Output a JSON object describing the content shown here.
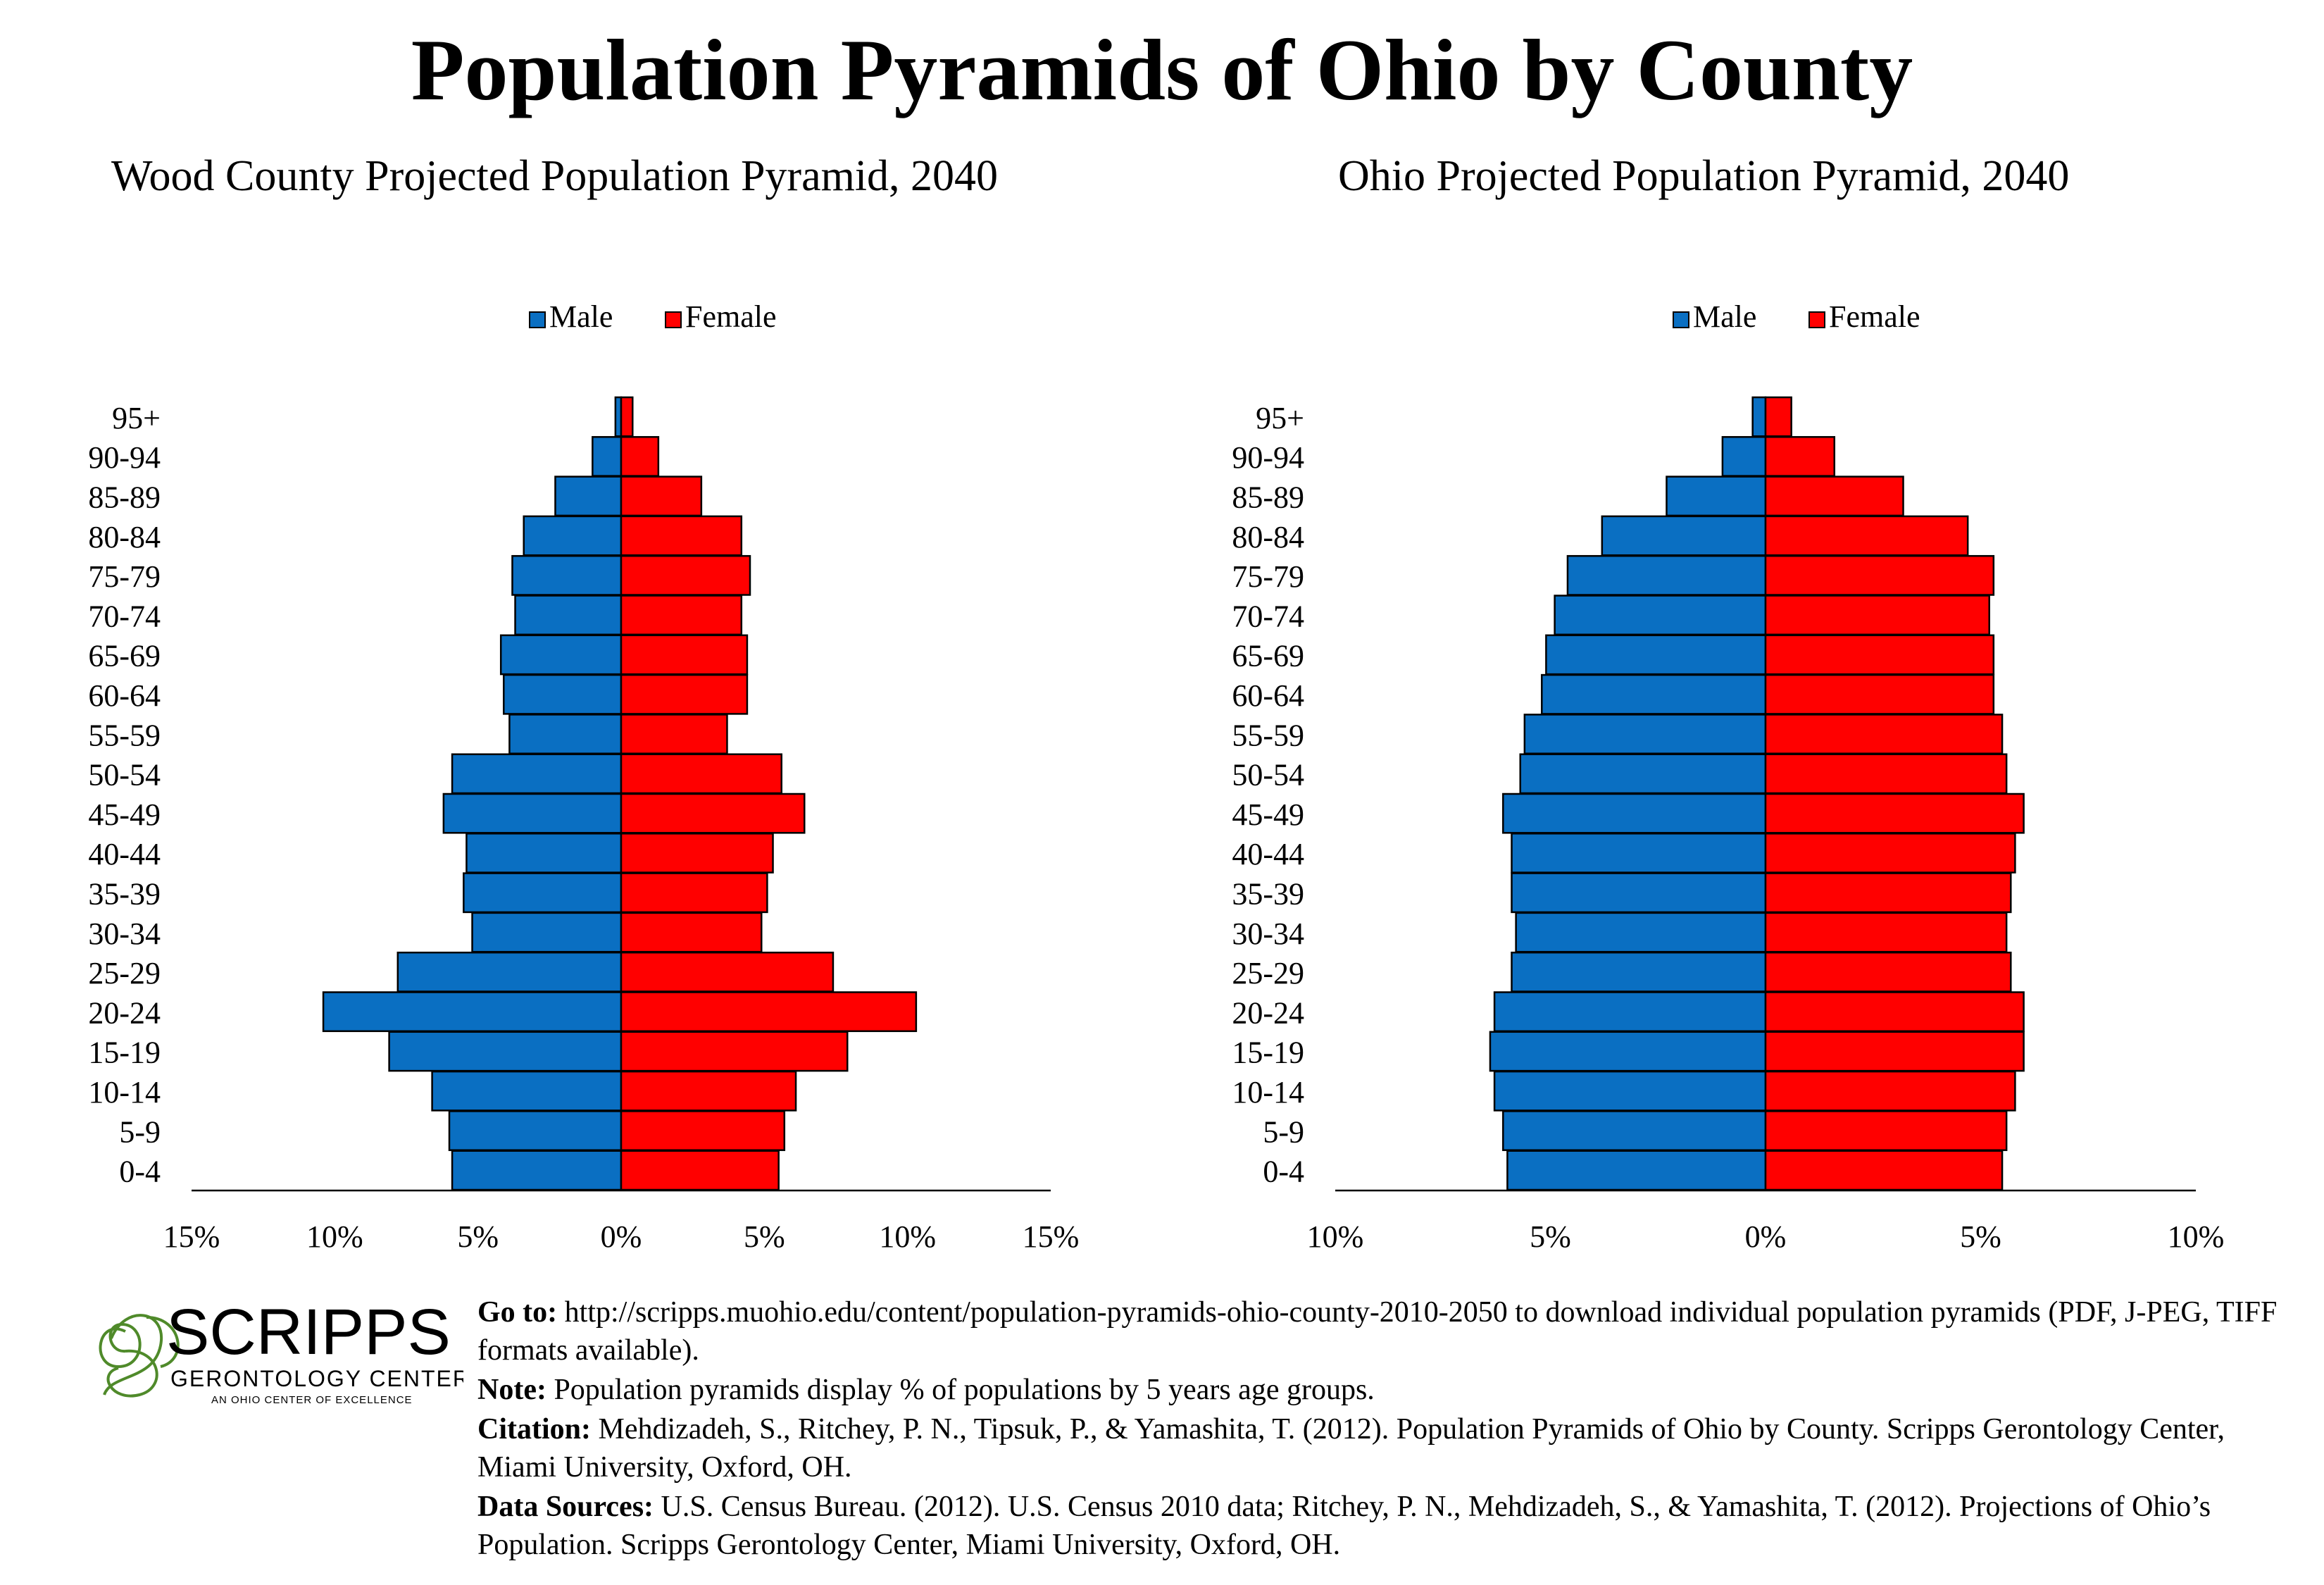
{
  "title": "Population Pyramids of Ohio by County",
  "colors": {
    "male": "#0a6fc2",
    "female": "#ff0000",
    "logo_red": "#b5282e",
    "logo_green": "#4f8a2a"
  },
  "chart_data": [
    {
      "type": "bar",
      "title": "Wood County Projected Population Pyramid, 2040",
      "legend": {
        "position": "top-center",
        "entries": [
          "Male",
          "Female"
        ]
      },
      "categories": [
        "95+",
        "90-94",
        "85-89",
        "80-84",
        "75-79",
        "70-74",
        "65-69",
        "60-64",
        "55-59",
        "50-54",
        "45-49",
        "40-44",
        "35-39",
        "30-34",
        "25-29",
        "20-24",
        "15-19",
        "10-14",
        "5-9",
        "0-4"
      ],
      "series": [
        {
          "name": "Male",
          "values": [
            0.2,
            1.0,
            2.3,
            3.4,
            3.8,
            3.7,
            4.2,
            4.1,
            3.9,
            5.9,
            6.2,
            5.4,
            5.5,
            5.2,
            7.8,
            10.4,
            8.1,
            6.6,
            6.0,
            5.9
          ]
        },
        {
          "name": "Female",
          "values": [
            0.4,
            1.3,
            2.8,
            4.2,
            4.5,
            4.2,
            4.4,
            4.4,
            3.7,
            5.6,
            6.4,
            5.3,
            5.1,
            4.9,
            7.4,
            10.3,
            7.9,
            6.1,
            5.7,
            5.5
          ]
        }
      ],
      "xlim": [
        -15,
        15
      ],
      "xticks": [
        "15%",
        "10%",
        "5%",
        "0%",
        "5%",
        "10%",
        "15%"
      ],
      "grid": false
    },
    {
      "type": "bar",
      "title": "Ohio Projected Population Pyramid, 2040",
      "legend": {
        "position": "top-center",
        "entries": [
          "Male",
          "Female"
        ]
      },
      "categories": [
        "95+",
        "90-94",
        "85-89",
        "80-84",
        "75-79",
        "70-74",
        "65-69",
        "60-64",
        "55-59",
        "50-54",
        "45-49",
        "40-44",
        "35-39",
        "30-34",
        "25-29",
        "20-24",
        "15-19",
        "10-14",
        "5-9",
        "0-4"
      ],
      "series": [
        {
          "name": "Male",
          "values": [
            0.3,
            1.0,
            2.3,
            3.8,
            4.6,
            4.9,
            5.1,
            5.2,
            5.6,
            5.7,
            6.1,
            5.9,
            5.9,
            5.8,
            5.9,
            6.3,
            6.4,
            6.3,
            6.1,
            6.0
          ]
        },
        {
          "name": "Female",
          "values": [
            0.6,
            1.6,
            3.2,
            4.7,
            5.3,
            5.2,
            5.3,
            5.3,
            5.5,
            5.6,
            6.0,
            5.8,
            5.7,
            5.6,
            5.7,
            6.0,
            6.0,
            5.8,
            5.6,
            5.5
          ]
        }
      ],
      "xlim": [
        -10,
        10
      ],
      "xticks": [
        "10%",
        "5%",
        "0%",
        "5%",
        "10%"
      ],
      "grid": false
    }
  ],
  "footer": {
    "logo": {
      "name": "SCRIPPS",
      "line2": "GERONTOLOGY CENTER",
      "line3": "AN OHIO CENTER OF EXCELLENCE"
    },
    "goto_label": "Go to:",
    "goto_text": "http://scripps.muohio.edu/content/population-pyramids-ohio-county-2010-2050 to download individual population pyramids (PDF, J-PEG, TIFF formats available).",
    "note_label": "Note:",
    "note_text": "Population pyramids display % of populations by 5 years age groups.",
    "citation_label": "Citation:",
    "citation_text": "Mehdizadeh, S., Ritchey, P. N., Tipsuk, P., & Yamashita, T. (2012). Population Pyramids of Ohio by County. Scripps Gerontology Center, Miami University, Oxford, OH.",
    "sources_label": "Data Sources:",
    "sources_text": "U.S. Census Bureau. (2012). U.S. Census 2010 data; Ritchey, P. N., Mehdizadeh, S., & Yamashita, T. (2012). Projections of Ohio’s Population. Scripps Gerontology Center, Miami University, Oxford, OH."
  }
}
